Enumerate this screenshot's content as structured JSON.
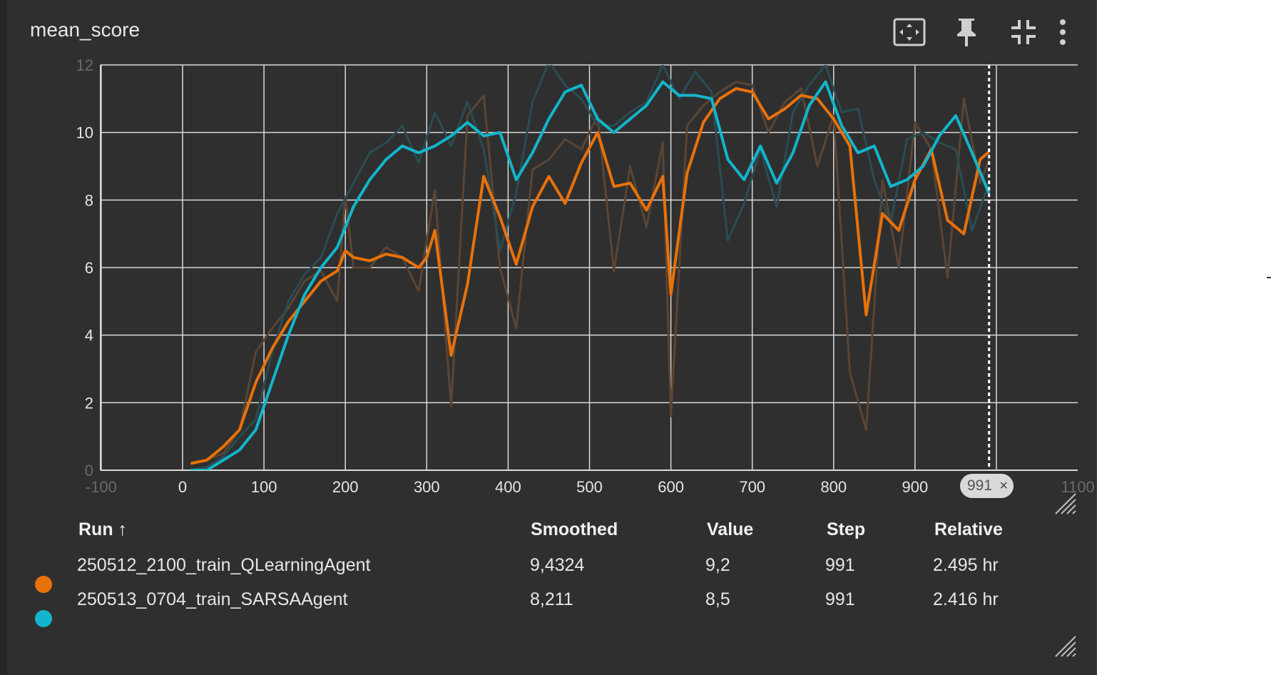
{
  "title": "mean_score",
  "toolbar": [
    "fit-domain-icon",
    "pin-icon",
    "collapse-icon",
    "more-vert-icon"
  ],
  "colors": {
    "orange": "#e8710a",
    "orange_raw": "#5a4535",
    "cyan": "#12b5cb",
    "cyan_raw": "#2a4c52",
    "grid": "#d9d9d9",
    "background": "#2f2f2f"
  },
  "table": {
    "headers": {
      "run": "Run ↑",
      "smoothed": "Smoothed",
      "value": "Value",
      "step": "Step",
      "relative": "Relative"
    },
    "rows": [
      {
        "run": "250512_2100_train_QLearningAgent",
        "smoothed": "9,4324",
        "value": "9,2",
        "step": "991",
        "relative": "2.495 hr",
        "color": "#e8710a"
      },
      {
        "run": "250513_0704_train_SARSAAgent",
        "smoothed": "8,211",
        "value": "8,5",
        "step": "991",
        "relative": "2.416 hr",
        "color": "#12b5cb"
      }
    ]
  },
  "step_marker": {
    "label": "991",
    "close": "×"
  },
  "chart_data": {
    "type": "line",
    "xlim": [
      -100,
      1100
    ],
    "ylim": [
      0,
      12
    ],
    "x_ticks": [
      "-100",
      "0",
      "100",
      "200",
      "300",
      "400",
      "500",
      "600",
      "700",
      "800",
      "900",
      "1000",
      "1100"
    ],
    "y_ticks": [
      "0",
      "2",
      "4",
      "6",
      "8",
      "10",
      "12"
    ],
    "grid": true,
    "cursor_x": 991,
    "series": [
      {
        "name": "250512_2100_train_QLearningAgent",
        "color": "#e8710a",
        "x": [
          10,
          30,
          50,
          70,
          90,
          110,
          130,
          150,
          170,
          190,
          200,
          210,
          230,
          250,
          270,
          290,
          300,
          310,
          330,
          350,
          370,
          390,
          410,
          430,
          450,
          470,
          490,
          510,
          530,
          550,
          570,
          590,
          600,
          620,
          640,
          660,
          680,
          700,
          720,
          740,
          760,
          780,
          800,
          820,
          840,
          860,
          880,
          900,
          920,
          940,
          960,
          980,
          991
        ],
        "smoothed": [
          0.2,
          0.3,
          0.7,
          1.2,
          2.6,
          3.6,
          4.4,
          5.0,
          5.6,
          5.9,
          6.5,
          6.3,
          6.2,
          6.4,
          6.3,
          6.0,
          6.3,
          7.1,
          3.4,
          5.5,
          8.7,
          7.5,
          6.1,
          7.8,
          8.7,
          7.9,
          9.1,
          10.0,
          8.4,
          8.5,
          7.7,
          8.7,
          5.2,
          8.8,
          10.3,
          11.0,
          11.3,
          11.2,
          10.4,
          10.7,
          11.1,
          11.0,
          10.4,
          9.6,
          4.6,
          7.6,
          7.1,
          8.6,
          9.5,
          7.4,
          7.0,
          9.2,
          9.43
        ],
        "raw": [
          0.2,
          0.3,
          0.5,
          1.2,
          3.5,
          4.2,
          4.8,
          5.6,
          5.9,
          5.0,
          8.1,
          6.0,
          6.0,
          6.6,
          6.3,
          5.3,
          6.8,
          8.3,
          1.9,
          10.5,
          11.1,
          6.0,
          4.2,
          8.9,
          9.2,
          9.8,
          9.5,
          10.5,
          5.9,
          9.0,
          7.2,
          9.7,
          1.6,
          10.2,
          10.8,
          11.2,
          11.5,
          11.4,
          10.0,
          10.9,
          11.3,
          9.0,
          10.5,
          2.9,
          1.2,
          8.6,
          6.0,
          10.3,
          9.5,
          5.7,
          11.0,
          8.5,
          9.2
        ]
      },
      {
        "name": "250513_0704_train_SARSAAgent",
        "color": "#12b5cb",
        "x": [
          10,
          30,
          50,
          70,
          90,
          110,
          130,
          150,
          170,
          190,
          210,
          230,
          250,
          270,
          290,
          310,
          330,
          350,
          370,
          390,
          410,
          430,
          450,
          470,
          490,
          510,
          530,
          550,
          570,
          590,
          610,
          630,
          650,
          670,
          690,
          710,
          730,
          750,
          770,
          790,
          810,
          830,
          850,
          870,
          890,
          910,
          930,
          950,
          970,
          991
        ],
        "smoothed": [
          0.0,
          0.0,
          0.3,
          0.6,
          1.2,
          2.6,
          4.0,
          5.2,
          6.0,
          6.6,
          7.8,
          8.6,
          9.2,
          9.6,
          9.4,
          9.6,
          9.9,
          10.3,
          9.9,
          10.0,
          8.6,
          9.4,
          10.4,
          11.2,
          11.4,
          10.4,
          10.0,
          10.4,
          10.8,
          11.5,
          11.1,
          11.1,
          11.0,
          9.2,
          8.6,
          9.6,
          8.5,
          9.4,
          10.8,
          11.5,
          10.2,
          9.4,
          9.6,
          8.4,
          8.6,
          9.0,
          9.9,
          10.5,
          9.4,
          8.2
        ],
        "raw": [
          0.0,
          0.1,
          0.4,
          1.0,
          1.5,
          3.5,
          5.0,
          5.8,
          6.3,
          7.6,
          8.5,
          9.4,
          9.7,
          10.2,
          9.1,
          10.6,
          9.6,
          10.9,
          9.5,
          6.5,
          8.2,
          10.9,
          12.1,
          11.4,
          11.0,
          10.2,
          10.2,
          10.6,
          10.9,
          12.0,
          11.0,
          11.8,
          11.2,
          6.8,
          7.9,
          9.5,
          7.8,
          10.6,
          11.4,
          12.0,
          10.6,
          10.7,
          8.6,
          7.3,
          9.8,
          10.0,
          9.7,
          9.5,
          7.1,
          8.5
        ]
      }
    ]
  }
}
